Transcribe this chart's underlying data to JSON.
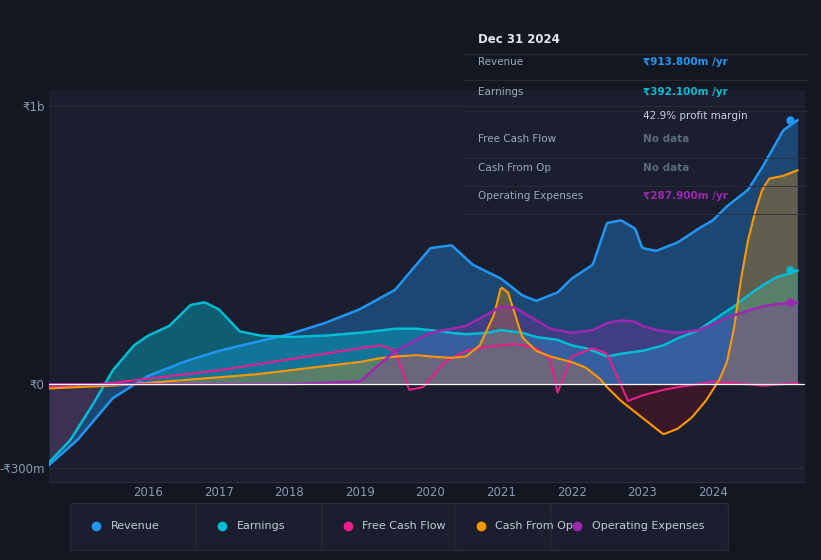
{
  "bg_color": "#131722",
  "plot_bg_color": "#131722",
  "chart_area_color": "#1a1e2e",
  "grid_color": "#2a2e39",
  "zero_line_color": "#ffffff",
  "revenue_color": "#2196f3",
  "earnings_color": "#00bcd4",
  "fcf_color": "#e91e8c",
  "cashfromop_color": "#ff9800",
  "opex_color": "#9c27b0",
  "tooltip_bg": "#131722",
  "tooltip_border": "#2a2e39",
  "tooltip_title": "Dec 31 2024",
  "tooltip_revenue_label": "Revenue",
  "tooltip_revenue_val": "₹913.800m /yr",
  "tooltip_earnings_label": "Earnings",
  "tooltip_earnings_val": "₹392.100m /yr",
  "tooltip_margin": "42.9% profit margin",
  "tooltip_fcf_label": "Free Cash Flow",
  "tooltip_fcf_val": "No data",
  "tooltip_cashop_label": "Cash From Op",
  "tooltip_cashop_val": "No data",
  "tooltip_opex_label": "Operating Expenses",
  "tooltip_opex_val": "₹287.900m /yr",
  "legend_labels": [
    "Revenue",
    "Earnings",
    "Free Cash Flow",
    "Cash From Op",
    "Operating Expenses"
  ],
  "xlabel_years": [
    2016,
    2017,
    2018,
    2019,
    2020,
    2021,
    2022,
    2023,
    2024
  ],
  "xlim_min": 2014.6,
  "xlim_max": 2025.3,
  "ylim_min": -350,
  "ylim_max": 1060,
  "ytick_vals": [
    -300,
    0,
    1000
  ],
  "ytick_labels": [
    "-₹300m",
    "₹0",
    "₹1b"
  ]
}
